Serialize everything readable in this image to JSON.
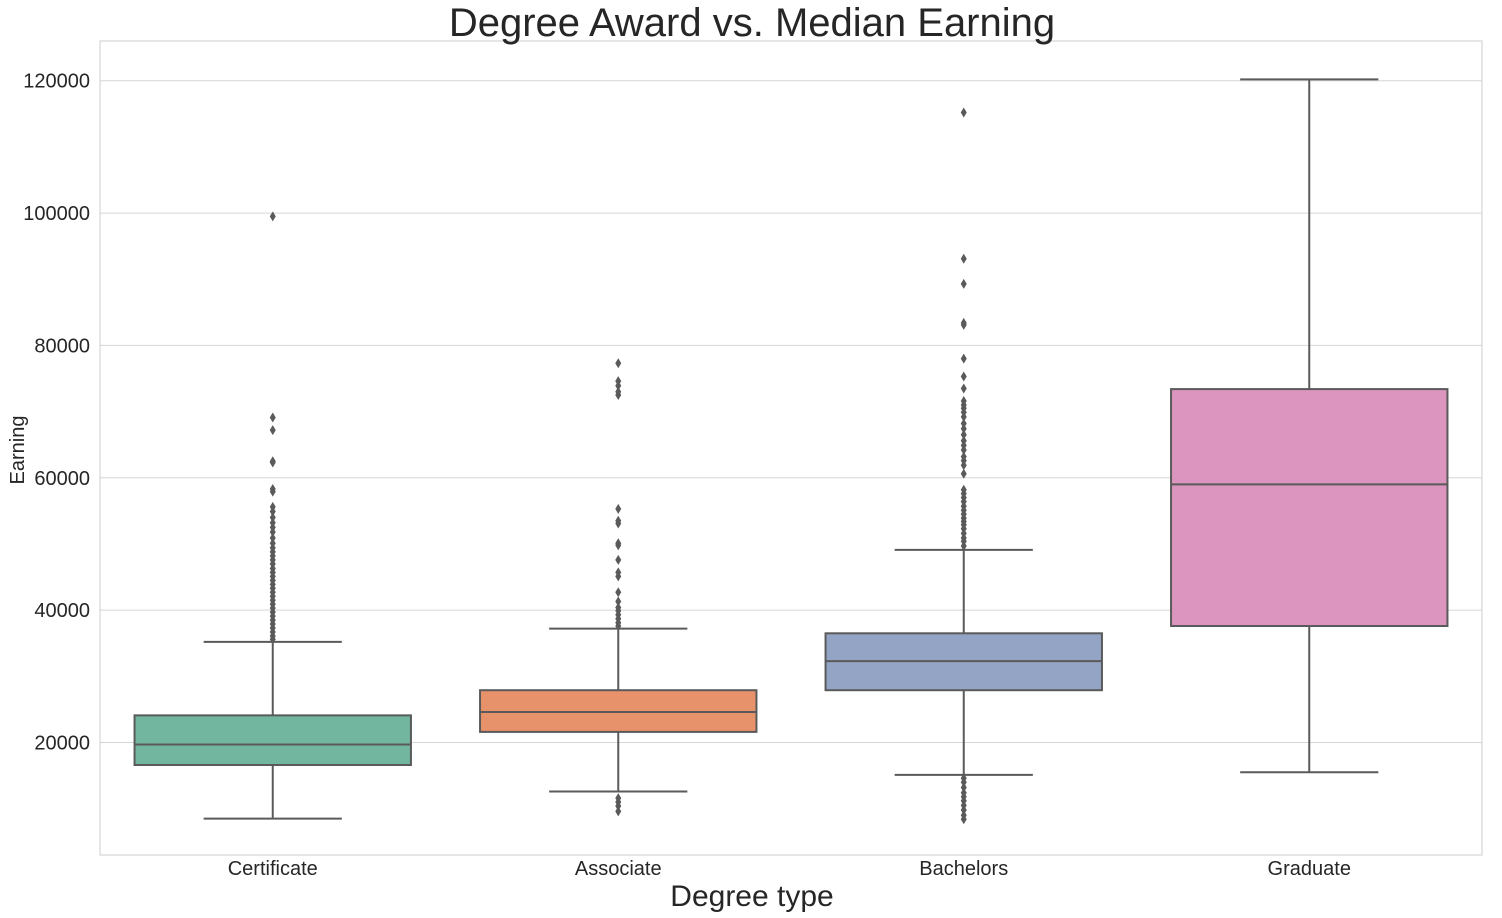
{
  "chart_data": {
    "type": "box",
    "title": "Degree Award vs. Median Earning",
    "xlabel": "Degree type",
    "ylabel": "Earning",
    "ylim": [
      3000,
      126000
    ],
    "yticks": [
      20000,
      40000,
      60000,
      80000,
      100000,
      120000
    ],
    "ytick_labels": [
      "20000",
      "40000",
      "60000",
      "80000",
      "100000",
      "120000"
    ],
    "grid": true,
    "style": {
      "background": "#ffffff",
      "grid_color": "#d6d6d6",
      "line_color": "#5a5a5a",
      "spine_color": "#cccccc"
    },
    "categories": [
      "Certificate",
      "Associate",
      "Bachelors",
      "Graduate"
    ],
    "boxes": [
      {
        "category": "Certificate",
        "color": "#72b6a0",
        "whisker_low": 8500,
        "q1": 16600,
        "median": 19700,
        "q3": 24100,
        "whisker_high": 35200,
        "outliers": [
          99500,
          69100,
          67200,
          62500,
          62300,
          58300,
          57900,
          55600,
          54900,
          54000,
          53200,
          52500,
          51800,
          50900,
          50100,
          49400,
          48800,
          48200,
          47600,
          47000,
          46300,
          45700,
          45100,
          44500,
          43900,
          43300,
          42700,
          42100,
          41500,
          40900,
          40300,
          39700,
          39100,
          38500,
          37900,
          37300,
          36700,
          36100,
          35600
        ]
      },
      {
        "category": "Associate",
        "color": "#e8926c",
        "whisker_low": 12600,
        "q1": 21600,
        "median": 24600,
        "q3": 27900,
        "whisker_high": 37200,
        "outliers": [
          77300,
          74600,
          73900,
          73000,
          72500,
          55300,
          53500,
          53100,
          50100,
          49800,
          47600,
          45700,
          45100,
          42700,
          41300,
          40400,
          39900,
          39300,
          38700,
          38100,
          37600,
          11600,
          11000,
          10400,
          9600
        ]
      },
      {
        "category": "Bachelors",
        "color": "#94a4c4",
        "whisker_low": 15100,
        "q1": 27900,
        "median": 32300,
        "q3": 36500,
        "whisker_high": 49100,
        "outliers": [
          115200,
          93100,
          89300,
          83400,
          83100,
          78000,
          75300,
          73500,
          71600,
          71000,
          70500,
          69900,
          69200,
          68200,
          67400,
          66500,
          65600,
          64900,
          64200,
          63200,
          62600,
          61900,
          60600,
          58200,
          57600,
          57000,
          56400,
          55700,
          55100,
          54500,
          53900,
          53400,
          52900,
          52300,
          51600,
          50900,
          50400,
          49700,
          14600,
          14000,
          13200,
          12400,
          11800,
          11200,
          10500,
          9800,
          9000,
          8400
        ]
      },
      {
        "category": "Graduate",
        "color": "#dc95be",
        "whisker_low": 15500,
        "q1": 37600,
        "median": 59000,
        "q3": 73400,
        "whisker_high": 120200,
        "outliers": []
      }
    ]
  }
}
